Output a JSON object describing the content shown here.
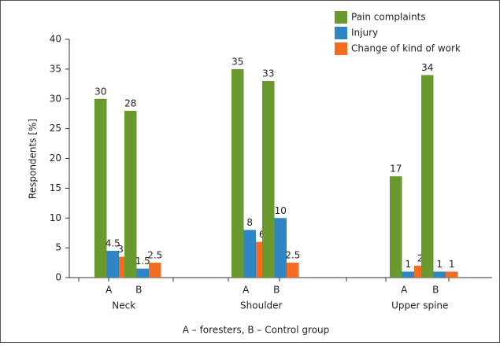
{
  "chart_data": {
    "type": "bar",
    "y_label": "Respondents  [%]",
    "note": "A – foresters, B – Control group",
    "categories": [
      "A",
      "B",
      "A",
      "B",
      "A",
      "B"
    ],
    "groups": [
      "Neck",
      "Shoulder",
      "Upper spine"
    ],
    "series": [
      {
        "name": "Pain complaints",
        "color": "#6a9a2e",
        "values": [
          30,
          28,
          35,
          33,
          17,
          34
        ]
      },
      {
        "name": "Injury",
        "color": "#2f86c6",
        "values": [
          4.5,
          1.5,
          8,
          10,
          1,
          1
        ]
      },
      {
        "name": "Change of kind of work",
        "color": "#f26c22",
        "values": [
          3.5,
          2.5,
          6,
          2.5,
          2,
          1
        ]
      }
    ],
    "ylim": [
      0,
      40
    ],
    "yticks": [
      0,
      5,
      10,
      15,
      20,
      25,
      30,
      35,
      40
    ],
    "legend": "upper right"
  }
}
